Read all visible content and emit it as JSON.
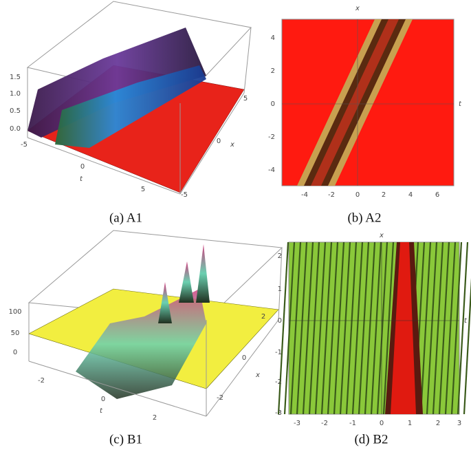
{
  "panels": [
    {
      "caption": "(a) A1",
      "axis_labels": {
        "t": "t",
        "x": "x"
      },
      "z_ticks": [
        "1.5",
        "1.0",
        "0.5",
        "0.0"
      ],
      "t_ticks": [
        "-5",
        "0",
        "5"
      ],
      "x_ticks": [
        "5",
        "0",
        "-5"
      ]
    },
    {
      "caption": "(b) A2",
      "axis_labels": {
        "top": "x",
        "right": "t"
      },
      "horizontal_ticks": [
        "-4",
        "-2",
        "0",
        "2",
        "4",
        "6"
      ],
      "vertical_ticks": [
        "4",
        "2",
        "0",
        "-2",
        "-4"
      ]
    },
    {
      "caption": "(c) B1",
      "axis_labels": {
        "t": "t",
        "x": "x"
      },
      "z_ticks": [
        "100",
        "50",
        "0"
      ],
      "t_ticks": [
        "-2",
        "0",
        "2"
      ],
      "x_ticks": [
        "2",
        "0",
        "-2"
      ]
    },
    {
      "caption": "(d) B2",
      "axis_labels": {
        "top": "x",
        "right": "t"
      },
      "horizontal_ticks": [
        "-3",
        "-2",
        "-1",
        "0",
        "1",
        "2",
        "3"
      ],
      "vertical_ticks": [
        "2",
        "1",
        "0",
        "-1",
        "-2",
        "-3"
      ]
    }
  ]
}
